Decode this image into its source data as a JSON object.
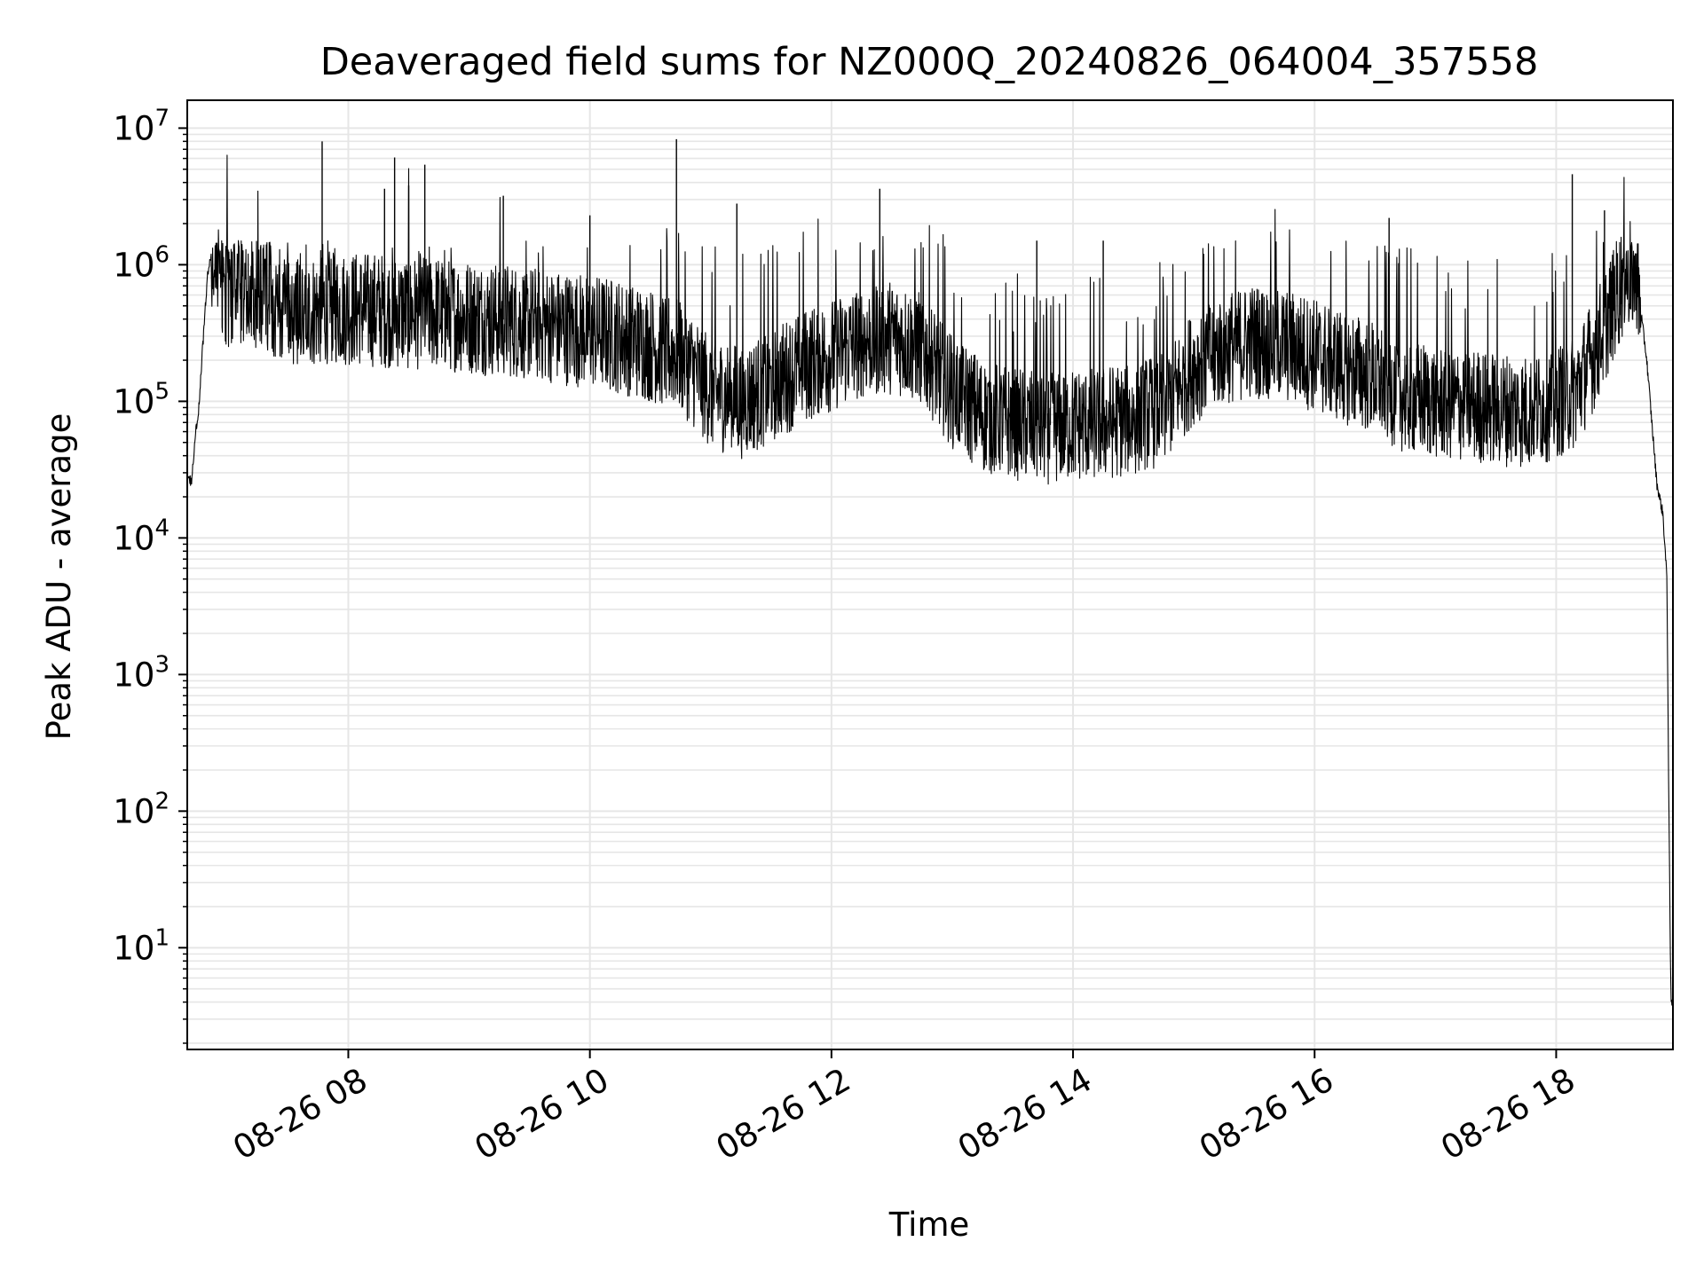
{
  "chart_data": {
    "type": "line",
    "title": "Deaveraged field sums for NZ000Q_20240826_064004_357558",
    "xlabel": "Time",
    "ylabel": "Peak ADU - average",
    "xscale": "time",
    "yscale": "log",
    "xlim": [
      "08-26 06:40",
      "08-26 18:58"
    ],
    "ylim": [
      1.8,
      16000000
    ],
    "x_ticks": [
      {
        "label": "08-26 08",
        "value": "08-26 08:00"
      },
      {
        "label": "08-26 10",
        "value": "08-26 10:00"
      },
      {
        "label": "08-26 12",
        "value": "08-26 12:00"
      },
      {
        "label": "08-26 14",
        "value": "08-26 14:00"
      },
      {
        "label": "08-26 16",
        "value": "08-26 16:00"
      },
      {
        "label": "08-26 18",
        "value": "08-26 18:00"
      }
    ],
    "y_ticks": [
      {
        "base": "10",
        "exp": "1",
        "value": 10
      },
      {
        "base": "10",
        "exp": "2",
        "value": 100
      },
      {
        "base": "10",
        "exp": "3",
        "value": 1000
      },
      {
        "base": "10",
        "exp": "4",
        "value": 10000
      },
      {
        "base": "10",
        "exp": "5",
        "value": 100000
      },
      {
        "base": "10",
        "exp": "6",
        "value": 1000000
      },
      {
        "base": "10",
        "exp": "7",
        "value": 10000000
      }
    ],
    "grid": true,
    "line_color": "#000000",
    "grid_color": "#e6e6e6",
    "series": [
      {
        "x": [
          "08-26 06:40",
          "08-26 06:42",
          "08-26 06:44",
          "08-26 06:46",
          "08-26 06:48",
          "08-26 06:50",
          "08-26 06:52",
          "08-26 06:55",
          "08-26 07:00",
          "08-26 07:05",
          "08-26 07:10",
          "08-26 07:20",
          "08-26 07:30",
          "08-26 07:40",
          "08-26 07:50",
          "08-26 08:00",
          "08-26 08:15",
          "08-26 08:30",
          "08-26 08:45",
          "08-26 09:00",
          "08-26 09:15",
          "08-26 09:30",
          "08-26 09:45",
          "08-26 10:00",
          "08-26 10:15",
          "08-26 10:30",
          "08-26 10:45",
          "08-26 11:00",
          "08-26 11:15",
          "08-26 11:30",
          "08-26 11:45",
          "08-26 12:00",
          "08-26 12:15",
          "08-26 12:30",
          "08-26 12:45",
          "08-26 13:00",
          "08-26 13:15",
          "08-26 13:30",
          "08-26 13:45",
          "08-26 14:00",
          "08-26 14:15",
          "08-26 14:30",
          "08-26 14:45",
          "08-26 15:00",
          "08-26 15:15",
          "08-26 15:30",
          "08-26 15:45",
          "08-26 16:00",
          "08-26 16:15",
          "08-26 16:30",
          "08-26 16:45",
          "08-26 17:00",
          "08-26 17:15",
          "08-26 17:30",
          "08-26 17:45",
          "08-26 18:00",
          "08-26 18:10",
          "08-26 18:20",
          "08-26 18:30",
          "08-26 18:35",
          "08-26 18:40",
          "08-26 18:45",
          "08-26 18:50",
          "08-26 18:53",
          "08-26 18:55",
          "08-26 18:56",
          "08-26 18:57",
          "08-26 18:58"
        ],
        "y": [
          30000,
          25000,
          55000,
          100000,
          300000,
          800000,
          1200000,
          1100000,
          600000,
          650000,
          700000,
          600000,
          500000,
          450000,
          500000,
          480000,
          470000,
          450000,
          450000,
          420000,
          400000,
          380000,
          350000,
          330000,
          300000,
          260000,
          220000,
          120000,
          100000,
          130000,
          180000,
          220000,
          280000,
          300000,
          250000,
          120000,
          80000,
          70000,
          65000,
          68000,
          70000,
          75000,
          90000,
          180000,
          250000,
          280000,
          260000,
          220000,
          180000,
          150000,
          110000,
          100000,
          95000,
          90000,
          85000,
          100000,
          120000,
          250000,
          600000,
          900000,
          800000,
          200000,
          25000,
          15000,
          5000,
          100,
          4,
          4
        ]
      }
    ],
    "spikes": [
      {
        "x": "08-26 07:47",
        "y": 8000000
      },
      {
        "x": "08-26 08:18",
        "y": 3600000
      },
      {
        "x": "08-26 08:23",
        "y": 6100000
      },
      {
        "x": "08-26 08:30",
        "y": 3800000
      },
      {
        "x": "08-26 08:38",
        "y": 5400000
      },
      {
        "x": "08-26 09:17",
        "y": 3200000
      },
      {
        "x": "08-26 10:00",
        "y": 2300000
      },
      {
        "x": "08-26 10:43",
        "y": 8300000
      },
      {
        "x": "08-26 11:13",
        "y": 2800000
      },
      {
        "x": "08-26 12:24",
        "y": 3600000
      },
      {
        "x": "08-26 13:42",
        "y": 1500000
      },
      {
        "x": "08-26 14:15",
        "y": 1500000
      },
      {
        "x": "08-26 16:37",
        "y": 2200000
      },
      {
        "x": "08-26 18:08",
        "y": 4600000
      },
      {
        "x": "08-26 18:24",
        "y": 2500000
      }
    ]
  }
}
